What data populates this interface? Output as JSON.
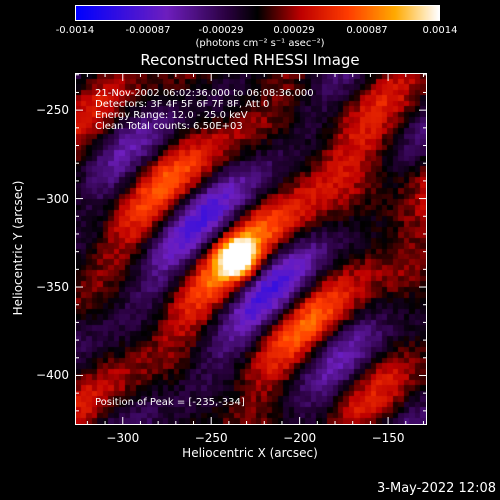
{
  "colorbar": {
    "ticks": [
      "-0.0014",
      "-0.00087",
      "-0.00029",
      "0.00029",
      "0.00087",
      "0.0014"
    ],
    "unit": "(photons cm⁻² s⁻¹ asec⁻²)"
  },
  "chart_data": {
    "type": "heatmap",
    "title": "Reconstructed RHESSI Image",
    "xlabel": "Heliocentric X (arcsec)",
    "ylabel": "Heliocentric Y (arcsec)",
    "xlim": [
      -327,
      -128
    ],
    "ylim": [
      -428,
      -229
    ],
    "xticks": [
      -300,
      -250,
      -200,
      -150
    ],
    "yticks": [
      -250,
      -300,
      -350,
      -400
    ],
    "colorbar_range": [
      -0.0014,
      0.0014
    ],
    "peak": [
      -235,
      -334
    ],
    "info": [
      "21-Nov-2002 06:02:36.000 to 06:08:36.000",
      "Detectors: 3F 4F 5F 6F 7F 8F, Att 0",
      "Energy Range: 12.0 - 25.0 keV",
      "Clean     Total counts: 6.50E+03"
    ],
    "peak_label": "Position of Peak = [-235,-334]"
  },
  "footer": {
    "timestamp": "3-May-2022 12:08"
  }
}
